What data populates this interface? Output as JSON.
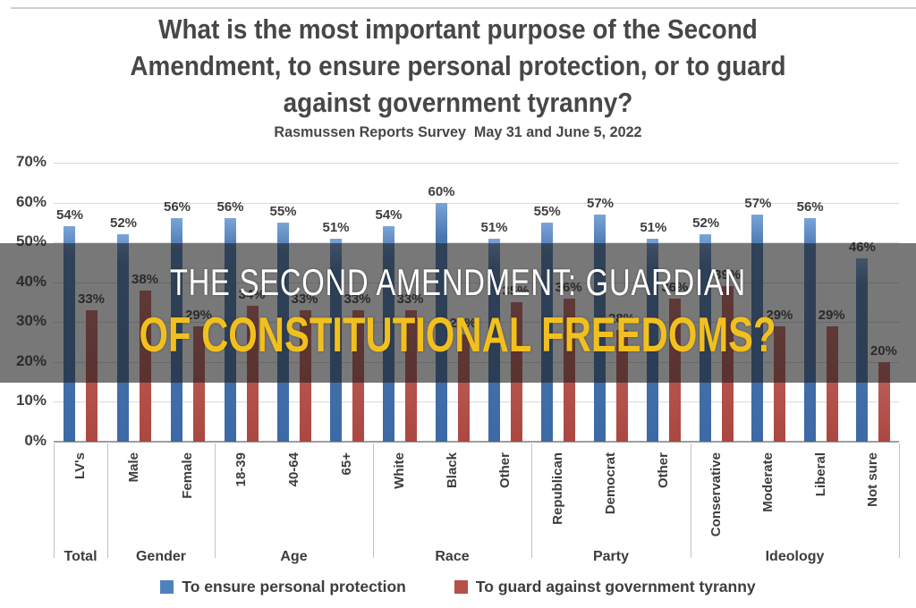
{
  "header": {
    "title_lines": [
      "What is the most important purpose of the Second",
      "Amendment, to ensure personal protection, or to guard",
      "against government tyranny?"
    ],
    "subtitle": "Rasmussen Reports Survey  May 31 and June 5, 2022"
  },
  "banner": {
    "line1": "THE SECOND AMENDMENT: GUARDIAN",
    "line2": "OF CONSTITUTIONAL FREEDOMS?",
    "line1_color": "#ffffff",
    "line2_color": "#f2c01e",
    "overlay_color": "rgba(30,30,30,0.60)"
  },
  "chart_data": {
    "type": "bar",
    "title": "What is the most important purpose of the Second Amendment, to ensure personal protection, or to guard against government tyranny?",
    "subtitle": "Rasmussen Reports Survey  May 31 and June 5, 2022",
    "ylabel": "",
    "ylim": [
      0,
      70
    ],
    "y_ticks_pct": [
      0,
      10,
      20,
      30,
      40,
      50,
      60,
      70
    ],
    "grid": true,
    "legend_position": "bottom",
    "value_suffix": "%",
    "groups": [
      {
        "label": "Total",
        "categories": [
          "LV's"
        ]
      },
      {
        "label": "Gender",
        "categories": [
          "Male",
          "Female"
        ]
      },
      {
        "label": "Age",
        "categories": [
          "18-39",
          "40-64",
          "65+"
        ]
      },
      {
        "label": "Race",
        "categories": [
          "White",
          "Black",
          "Other"
        ]
      },
      {
        "label": "Party",
        "categories": [
          "Republican",
          "Democrat",
          "Other"
        ]
      },
      {
        "label": "Ideology",
        "categories": [
          "Conservative",
          "Moderate",
          "Liberal",
          "Not sure"
        ]
      }
    ],
    "series": [
      {
        "name": "To ensure personal protection",
        "color": "#4f81bd",
        "values": [
          54,
          52,
          56,
          56,
          55,
          51,
          54,
          60,
          51,
          55,
          57,
          51,
          52,
          57,
          56,
          46
        ]
      },
      {
        "name": "To guard against government tyranny",
        "color": "#b5504b",
        "values": [
          33,
          38,
          29,
          34,
          33,
          33,
          33,
          27,
          35,
          36,
          28,
          36,
          39,
          29,
          29,
          20
        ]
      }
    ]
  }
}
